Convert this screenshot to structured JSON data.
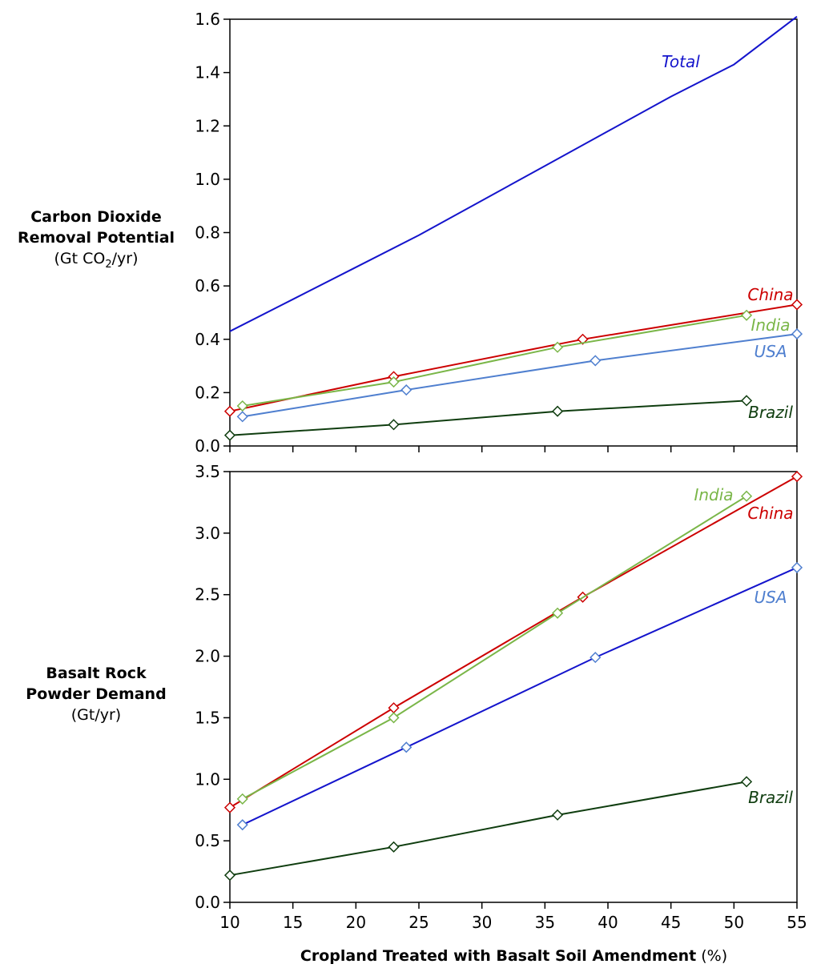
{
  "colors": {
    "total": "#1414cc",
    "china": "#cc0000",
    "india": "#7ab648",
    "usa": "#4f7fcf",
    "usa_bottom_line": "#1414cc",
    "brazil": "#0f3d0f",
    "axis": "#000000"
  },
  "chart_data": [
    {
      "type": "line",
      "ylabel": {
        "line1": "Carbon Dioxide",
        "line2": "Removal Potential",
        "unit_pre": "(Gt CO",
        "unit_sub": "2",
        "unit_post": "/yr)"
      },
      "xlim": [
        10,
        55
      ],
      "ylim": [
        0,
        1.6
      ],
      "yticks": [
        0.0,
        0.2,
        0.4,
        0.6,
        0.8,
        1.0,
        1.2,
        1.4,
        1.6
      ],
      "ytick_labels": [
        "0.0",
        "0.2",
        "0.4",
        "0.6",
        "0.8",
        "1.0",
        "1.2",
        "1.4",
        "1.6"
      ],
      "series": [
        {
          "name": "Total",
          "key": "total",
          "markers": false,
          "x": [
            10,
            15,
            20,
            25,
            30,
            35,
            40,
            45,
            50,
            55
          ],
          "y": [
            0.43,
            0.55,
            0.67,
            0.79,
            0.92,
            1.05,
            1.18,
            1.31,
            1.43,
            1.61
          ]
        },
        {
          "name": "China",
          "key": "china",
          "markers": true,
          "x": [
            10,
            23,
            38,
            55
          ],
          "y": [
            0.13,
            0.26,
            0.4,
            0.53
          ]
        },
        {
          "name": "India",
          "key": "india",
          "markers": true,
          "x": [
            11,
            23,
            36,
            51
          ],
          "y": [
            0.15,
            0.24,
            0.37,
            0.49
          ]
        },
        {
          "name": "USA",
          "key": "usa",
          "markers": true,
          "x": [
            11,
            24,
            39,
            55
          ],
          "y": [
            0.11,
            0.21,
            0.32,
            0.42
          ]
        },
        {
          "name": "Brazil",
          "key": "brazil",
          "markers": true,
          "x": [
            10,
            23,
            36,
            51
          ],
          "y": [
            0.04,
            0.08,
            0.13,
            0.17
          ]
        }
      ]
    },
    {
      "type": "line",
      "ylabel": {
        "line1": "Basalt Rock",
        "line2": "Powder Demand",
        "unit": "(Gt/yr)"
      },
      "xlabel": {
        "bold": "Cropland Treated with Basalt Soil Amendment",
        "unit": " (%)"
      },
      "xlim": [
        10,
        55
      ],
      "ylim": [
        0,
        3.5
      ],
      "xticks": [
        10,
        15,
        20,
        25,
        30,
        35,
        40,
        45,
        50,
        55
      ],
      "xtick_labels": [
        "10",
        "15",
        "20",
        "25",
        "30",
        "35",
        "40",
        "45",
        "50",
        "55"
      ],
      "yticks": [
        0.0,
        0.5,
        1.0,
        1.5,
        2.0,
        2.5,
        3.0,
        3.5
      ],
      "ytick_labels": [
        "0.0",
        "0.5",
        "1.0",
        "1.5",
        "2.0",
        "2.5",
        "3.0",
        "3.5"
      ],
      "series": [
        {
          "name": "China",
          "key": "china",
          "markers": true,
          "x": [
            10,
            23,
            38,
            55
          ],
          "y": [
            0.77,
            1.58,
            2.48,
            3.46
          ]
        },
        {
          "name": "India",
          "key": "india",
          "markers": true,
          "x": [
            11,
            23,
            36,
            51
          ],
          "y": [
            0.84,
            1.5,
            2.35,
            3.3
          ]
        },
        {
          "name": "USA",
          "key": "usa",
          "markers": true,
          "x": [
            11,
            24,
            39,
            55
          ],
          "y": [
            0.63,
            1.26,
            1.99,
            2.72
          ]
        },
        {
          "name": "Brazil",
          "key": "brazil",
          "markers": true,
          "x": [
            10,
            23,
            36,
            51
          ],
          "y": [
            0.22,
            0.45,
            0.71,
            0.98
          ]
        }
      ]
    }
  ]
}
